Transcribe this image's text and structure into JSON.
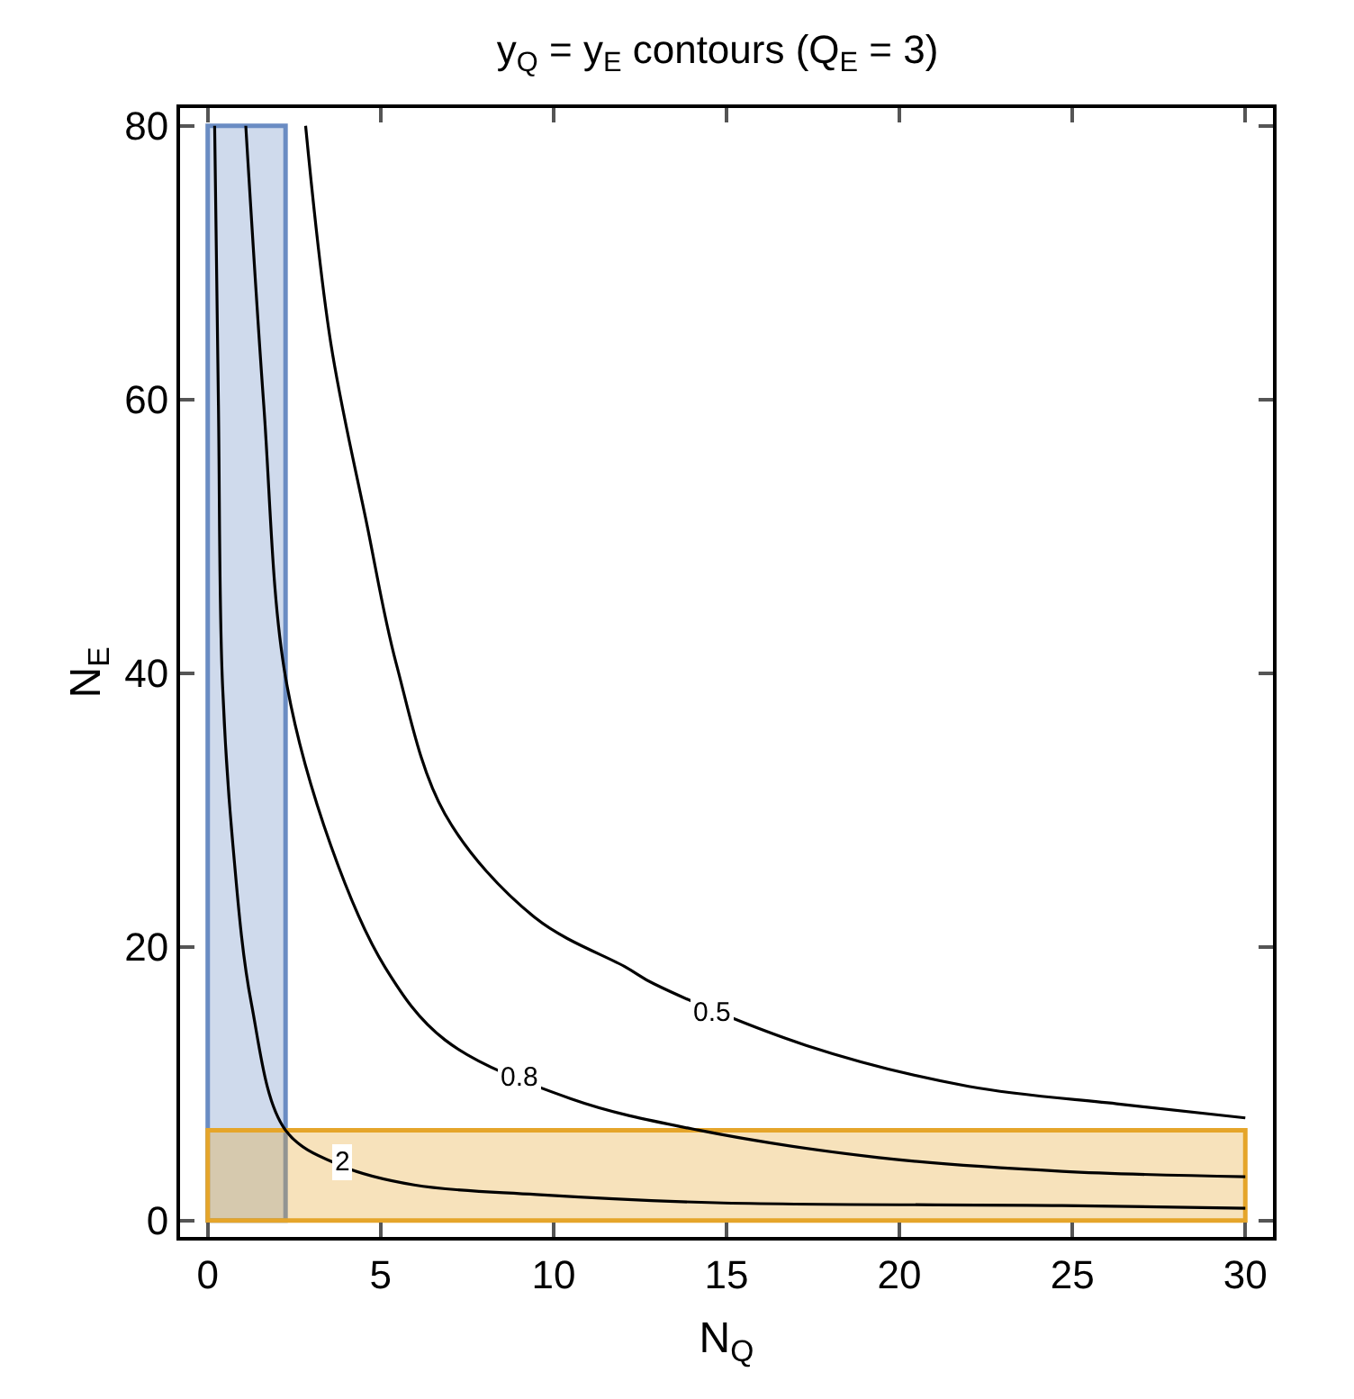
{
  "chart_data": {
    "type": "line",
    "title": "y$_{Q}$ = y$_{E}$ contours (Q$_{E}$ = 3)",
    "xlabel": "N$_{Q}$",
    "ylabel": "N$_{E}$",
    "xlim": [
      -0.8,
      30.8
    ],
    "ylim": [
      -1.2,
      81.3
    ],
    "xticks": [
      0,
      5,
      10,
      15,
      20,
      25,
      30
    ],
    "yticks": [
      0,
      20,
      40,
      60,
      80
    ],
    "grid": false,
    "marker": "none",
    "line_style": "solid",
    "series": [
      {
        "color": "#000000",
        "x": [
          2.83,
          3.56,
          4.6,
          5.45,
          6.86,
          9.48,
          12.1,
          12.9,
          17.3,
          22.0,
          26.4,
          30
        ],
        "values": [
          80,
          64.1,
          50.9,
          40.7,
          29.7,
          22.1,
          18.5,
          17.3,
          12.8,
          9.8,
          8.5,
          7.5
        ]
      },
      {
        "color": "#000000",
        "x": [
          1.1,
          1.62,
          2.25,
          3.56,
          5.13,
          6.86,
          10.5,
          14.2,
          19.4,
          24.7,
          30
        ],
        "values": [
          80,
          59.6,
          39.7,
          27.4,
          18.5,
          13.2,
          8.9,
          6.6,
          4.6,
          3.6,
          3.2
        ]
      },
      {
        "color": "#000000",
        "x": [
          0.2,
          0.31,
          0.42,
          0.73,
          1.26,
          2.25,
          3.87,
          5.97,
          9.5,
          14.7,
          24.7,
          30
        ],
        "values": [
          80,
          59.6,
          39.7,
          27.4,
          15.9,
          6.6,
          4.0,
          2.6,
          1.9,
          1.3,
          1.1,
          0.9
        ]
      }
    ],
    "annotations": [
      {
        "text": "0.5",
        "x": 14.6,
        "y": 15.2
      },
      {
        "text": "0.8",
        "x": 9.0,
        "y": 10.4
      },
      {
        "text": "2",
        "x": 3.9,
        "y": 4.2
      }
    ],
    "bands": [
      {
        "axis": "x",
        "from": 0,
        "to": 2.25,
        "color": "#6a8cc3"
      },
      {
        "axis": "y",
        "from": 0,
        "to": 6.6,
        "color": "#e5a52a"
      }
    ]
  }
}
